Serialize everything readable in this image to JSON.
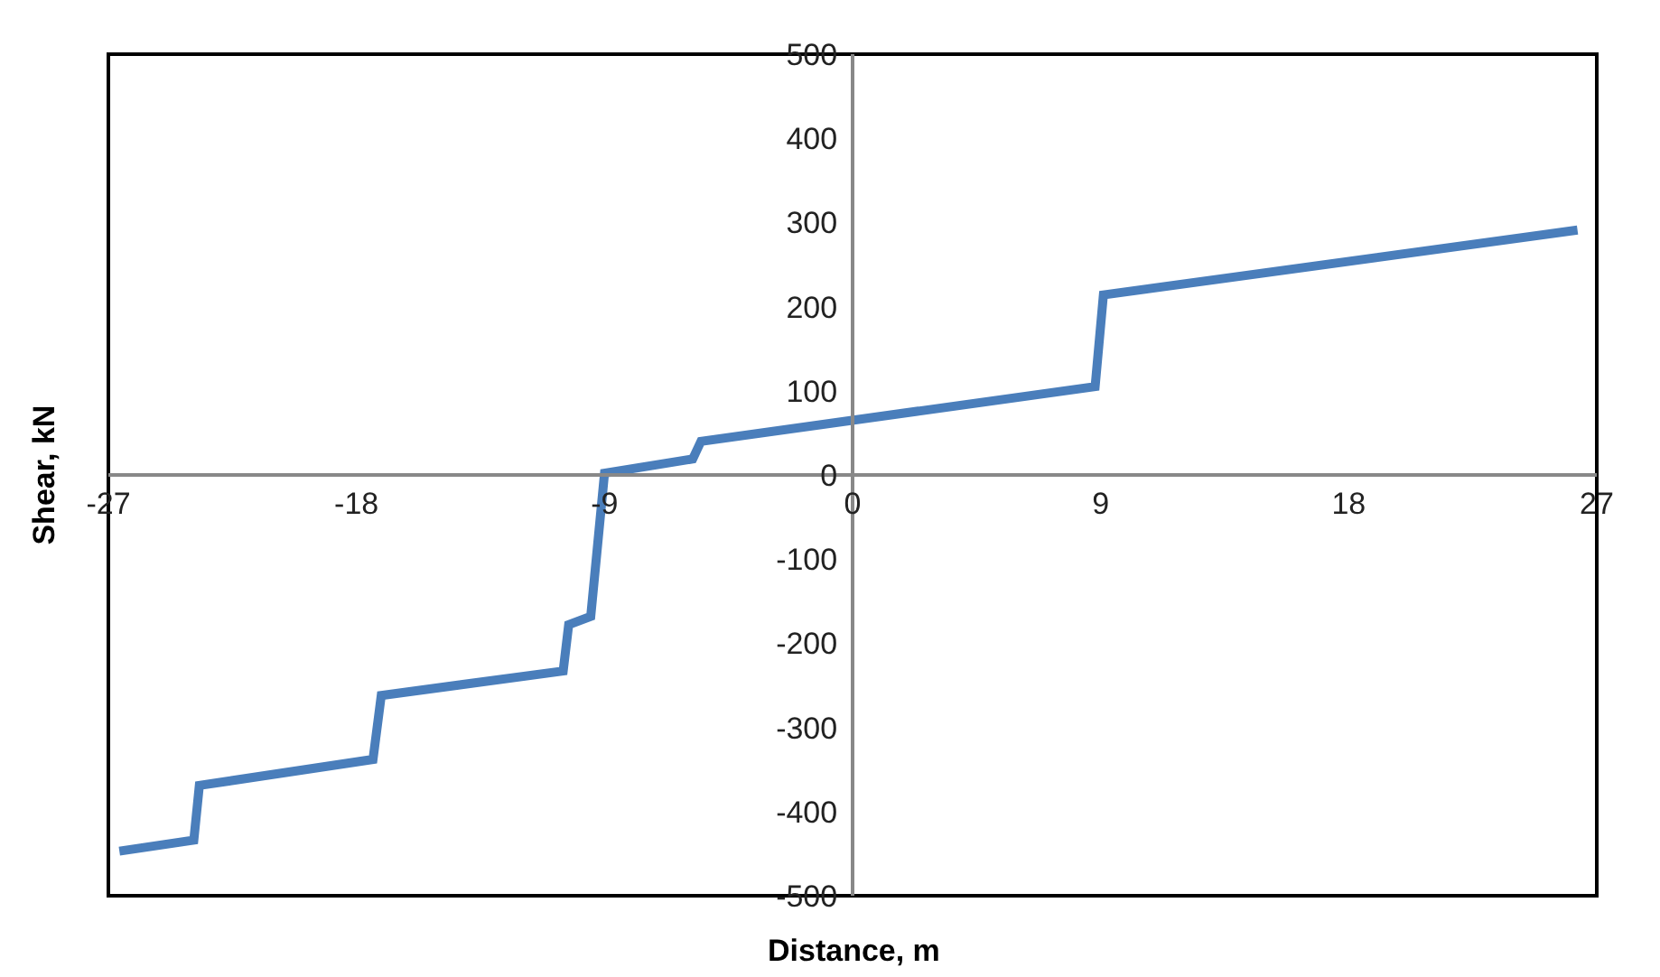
{
  "chart_data": {
    "type": "line",
    "xlabel": "Distance, m",
    "ylabel": "Shear, kN",
    "xlim": [
      -27,
      27
    ],
    "ylim": [
      -500,
      500
    ],
    "xticks": [
      -27,
      -18,
      -9,
      0,
      9,
      18,
      27
    ],
    "yticks": [
      -500,
      -400,
      -300,
      -200,
      -100,
      0,
      100,
      200,
      300,
      400,
      500
    ],
    "grid": false,
    "legend": false,
    "marker": "none",
    "line_style": "solid",
    "series": [
      {
        "color": "#4a7ebb",
        "x": [
          -26.6,
          -23.9,
          -23.7,
          -17.4,
          -17.1,
          -10.5,
          -10.3,
          -9.5,
          -9.0,
          -5.8,
          -5.5,
          8.8,
          9.1,
          26.3
        ],
        "values": [
          -447,
          -434,
          -369,
          -338,
          -262,
          -233,
          -178,
          -168,
          2,
          19,
          40,
          105,
          214,
          291
        ]
      }
    ]
  }
}
